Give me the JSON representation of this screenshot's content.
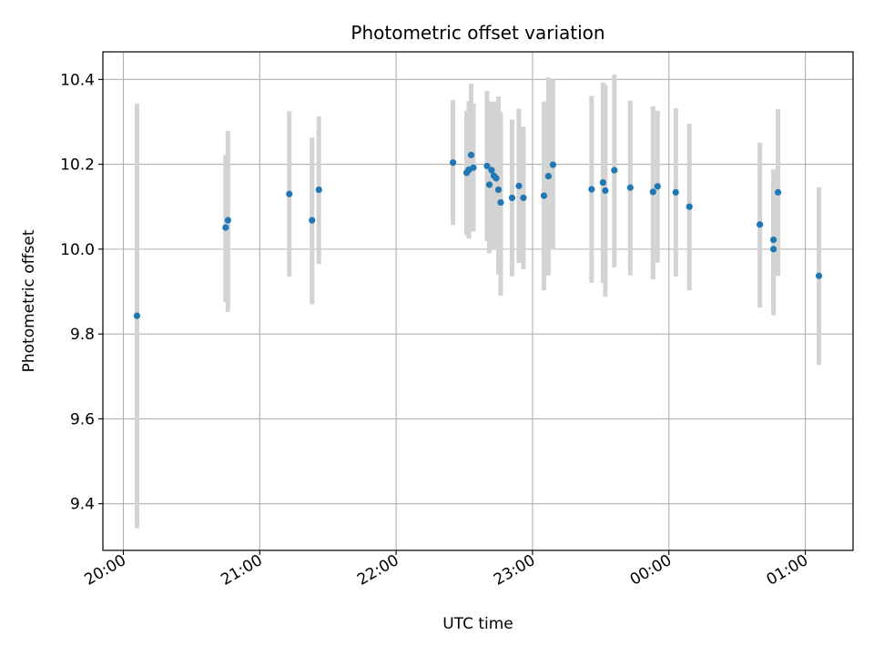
{
  "chart_data": {
    "type": "scatter",
    "title": "Photometric offset variation",
    "xlabel": "UTC time",
    "ylabel": "Photometric offset",
    "x_axis": "time",
    "x_ticks": [
      "20:00",
      "21:00",
      "22:00",
      "23:00",
      "00:00",
      "01:00"
    ],
    "y_ticks": [
      "9.4",
      "9.6",
      "9.8",
      "10.0",
      "10.2",
      "10.4"
    ],
    "ylim": [
      9.29,
      10.465
    ],
    "xlim": [
      "19:51",
      "01:21"
    ],
    "grid": true,
    "marker_color": "#1f77b4",
    "errorbar_color": "#d3d3d3",
    "points": [
      {
        "x": "20:06",
        "y": 9.843,
        "ylow": 9.342,
        "yhigh": 10.343
      },
      {
        "x": "20:45",
        "y": 10.051,
        "ylow": 9.875,
        "yhigh": 10.222
      },
      {
        "x": "20:46",
        "y": 10.068,
        "ylow": 9.852,
        "yhigh": 10.279
      },
      {
        "x": "21:13",
        "y": 10.13,
        "ylow": 9.935,
        "yhigh": 10.325
      },
      {
        "x": "21:23",
        "y": 10.068,
        "ylow": 9.87,
        "yhigh": 10.263
      },
      {
        "x": "21:26",
        "y": 10.14,
        "ylow": 9.965,
        "yhigh": 10.313
      },
      {
        "x": "22:25",
        "y": 10.204,
        "ylow": 10.057,
        "yhigh": 10.352
      },
      {
        "x": "22:31",
        "y": 10.18,
        "ylow": 10.033,
        "yhigh": 10.326
      },
      {
        "x": "22:32",
        "y": 10.187,
        "ylow": 10.025,
        "yhigh": 10.349
      },
      {
        "x": "22:33",
        "y": 10.222,
        "ylow": 10.054,
        "yhigh": 10.39
      },
      {
        "x": "22:34",
        "y": 10.192,
        "ylow": 10.041,
        "yhigh": 10.343
      },
      {
        "x": "22:40",
        "y": 10.196,
        "ylow": 10.019,
        "yhigh": 10.373
      },
      {
        "x": "22:41",
        "y": 10.152,
        "ylow": 9.99,
        "yhigh": 10.314
      },
      {
        "x": "22:42",
        "y": 10.186,
        "ylow": 10.024,
        "yhigh": 10.348
      },
      {
        "x": "22:43",
        "y": 10.173,
        "ylow": 9.998,
        "yhigh": 10.348
      },
      {
        "x": "22:44",
        "y": 10.167,
        "ylow": 10.002,
        "yhigh": 10.332
      },
      {
        "x": "22:45",
        "y": 10.14,
        "ylow": 9.94,
        "yhigh": 10.36
      },
      {
        "x": "22:46",
        "y": 10.11,
        "ylow": 9.89,
        "yhigh": 10.323
      },
      {
        "x": "22:51",
        "y": 10.121,
        "ylow": 9.936,
        "yhigh": 10.305
      },
      {
        "x": "22:54",
        "y": 10.149,
        "ylow": 9.967,
        "yhigh": 10.331
      },
      {
        "x": "22:56",
        "y": 10.121,
        "ylow": 9.953,
        "yhigh": 10.289
      },
      {
        "x": "23:05",
        "y": 10.126,
        "ylow": 9.903,
        "yhigh": 10.348
      },
      {
        "x": "23:07",
        "y": 10.172,
        "ylow": 9.938,
        "yhigh": 10.405
      },
      {
        "x": "23:09",
        "y": 10.199,
        "ylow": 9.999,
        "yhigh": 10.4
      },
      {
        "x": "23:26",
        "y": 10.141,
        "ylow": 9.921,
        "yhigh": 10.361
      },
      {
        "x": "23:31",
        "y": 10.157,
        "ylow": 9.92,
        "yhigh": 10.393
      },
      {
        "x": "23:32",
        "y": 10.138,
        "ylow": 9.888,
        "yhigh": 10.388
      },
      {
        "x": "23:36",
        "y": 10.186,
        "ylow": 9.957,
        "yhigh": 10.412
      },
      {
        "x": "23:43",
        "y": 10.145,
        "ylow": 9.938,
        "yhigh": 10.35
      },
      {
        "x": "23:53",
        "y": 10.135,
        "ylow": 9.929,
        "yhigh": 10.337
      },
      {
        "x": "23:55",
        "y": 10.148,
        "ylow": 9.968,
        "yhigh": 10.326
      },
      {
        "x": "00:03",
        "y": 10.134,
        "ylow": 9.935,
        "yhigh": 10.332
      },
      {
        "x": "00:09",
        "y": 10.1,
        "ylow": 9.903,
        "yhigh": 10.296
      },
      {
        "x": "00:40",
        "y": 10.058,
        "ylow": 9.862,
        "yhigh": 10.251
      },
      {
        "x": "00:46",
        "y": 10.0,
        "ylow": 9.844,
        "yhigh": 10.156
      },
      {
        "x": "00:46",
        "y": 10.022,
        "ylow": 9.855,
        "yhigh": 10.188
      },
      {
        "x": "00:48",
        "y": 10.134,
        "ylow": 9.937,
        "yhigh": 10.33
      },
      {
        "x": "01:06",
        "y": 9.937,
        "ylow": 9.727,
        "yhigh": 10.146
      }
    ]
  }
}
